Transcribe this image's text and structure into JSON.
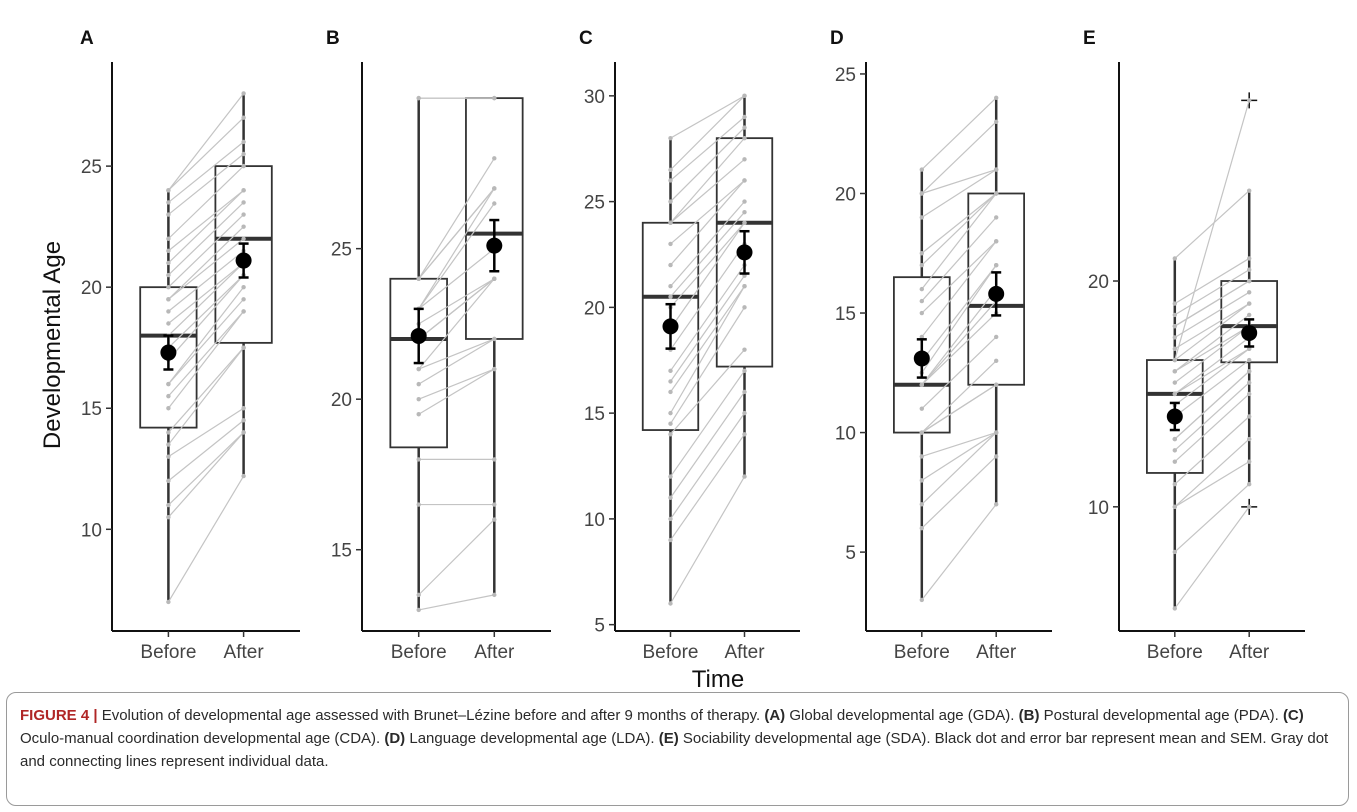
{
  "figure": {
    "y_axis_title": "Developmental Age",
    "x_axis_title": "Time",
    "caption": {
      "label": "FIGURE 4 |",
      "intro": " Evolution of developmental age assessed with Brunet–Lézine before and after 9 months of therapy. ",
      "parts": [
        {
          "tag": "(A)",
          "text": " Global developmental age (GDA). "
        },
        {
          "tag": "(B)",
          "text": " Postural developmental age (PDA). "
        },
        {
          "tag": "(C)",
          "text": " Oculo-manual coordination developmental age (CDA). "
        },
        {
          "tag": "(D)",
          "text": " Language developmental age (LDA). "
        },
        {
          "tag": "(E)",
          "text": " Sociability developmental age (SDA). "
        }
      ],
      "outro": "Black dot and error bar represent mean and SEM. Gray dot and connecting lines represent individual data."
    }
  },
  "chart_data": [
    {
      "type": "box",
      "panel": "A",
      "categories": [
        "Before",
        "After"
      ],
      "yticks": [
        10,
        15,
        20,
        25
      ],
      "ylim": [
        5.8,
        29.3
      ],
      "boxes": [
        {
          "category": "Before",
          "min": 7,
          "q1": 14.2,
          "median": 18,
          "q3": 20,
          "max": 24,
          "mean": 17.3,
          "sem": 0.7
        },
        {
          "category": "After",
          "min": 12.2,
          "q1": 17.7,
          "median": 22,
          "q3": 25,
          "max": 28,
          "mean": 21.1,
          "sem": 0.7
        }
      ],
      "individual": [
        [
          7,
          12.2
        ],
        [
          10.5,
          14
        ],
        [
          11,
          14
        ],
        [
          12,
          14.5
        ],
        [
          13,
          15
        ],
        [
          13.5,
          17.5
        ],
        [
          14,
          17.5
        ],
        [
          15,
          19
        ],
        [
          15.5,
          19
        ],
        [
          16,
          19.5
        ],
        [
          16,
          20
        ],
        [
          17,
          20.5
        ],
        [
          17.5,
          20.5
        ],
        [
          18,
          21
        ],
        [
          18.5,
          21
        ],
        [
          19,
          21.5
        ],
        [
          19.5,
          22
        ],
        [
          19.5,
          22.5
        ],
        [
          20,
          23
        ],
        [
          20.5,
          23.5
        ],
        [
          21,
          24
        ],
        [
          21.5,
          24
        ],
        [
          22,
          25
        ],
        [
          23,
          25.5
        ],
        [
          23.5,
          26
        ],
        [
          24,
          27
        ],
        [
          24,
          28
        ]
      ],
      "outliers": []
    },
    {
      "type": "box",
      "panel": "B",
      "categories": [
        "Before",
        "After"
      ],
      "yticks": [
        15,
        20,
        25
      ],
      "ylim": [
        12.3,
        31.2
      ],
      "boxes": [
        {
          "category": "Before",
          "min": 13,
          "q1": 18.4,
          "median": 22,
          "q3": 24,
          "max": 30,
          "mean": 22.1,
          "sem": 0.9
        },
        {
          "category": "After",
          "min": 13.5,
          "q1": 22,
          "median": 25.5,
          "q3": 30,
          "max": 30,
          "mean": 25.1,
          "sem": 0.85
        }
      ],
      "individual": [
        [
          13,
          13.5
        ],
        [
          13.5,
          16
        ],
        [
          16.5,
          16.5
        ],
        [
          18,
          18
        ],
        [
          19.5,
          21
        ],
        [
          20,
          21
        ],
        [
          20.5,
          22
        ],
        [
          21,
          22
        ],
        [
          21,
          24
        ],
        [
          22,
          24
        ],
        [
          22,
          24
        ],
        [
          22.5,
          24
        ],
        [
          23,
          25
        ],
        [
          23,
          26.5
        ],
        [
          23,
          27
        ],
        [
          24,
          27
        ],
        [
          24,
          27
        ],
        [
          24,
          28
        ],
        [
          30,
          30
        ],
        [
          30,
          30
        ]
      ],
      "outliers": []
    },
    {
      "type": "box",
      "panel": "C",
      "categories": [
        "Before",
        "After"
      ],
      "yticks": [
        5,
        10,
        15,
        20,
        25,
        30
      ],
      "ylim": [
        4.7,
        31.6
      ],
      "boxes": [
        {
          "category": "Before",
          "min": 6,
          "q1": 14.2,
          "median": 20.5,
          "q3": 24,
          "max": 28,
          "mean": 19.1,
          "sem": 1.05
        },
        {
          "category": "After",
          "min": 12,
          "q1": 17.2,
          "median": 24,
          "q3": 28,
          "max": 30,
          "mean": 22.6,
          "sem": 1.0
        }
      ],
      "individual": [
        [
          6,
          12
        ],
        [
          9,
          14
        ],
        [
          10,
          15
        ],
        [
          11,
          16
        ],
        [
          12,
          17
        ],
        [
          14,
          18
        ],
        [
          14.5,
          20
        ],
        [
          15,
          21
        ],
        [
          16,
          21
        ],
        [
          16.5,
          21.5
        ],
        [
          17,
          22
        ],
        [
          18,
          23
        ],
        [
          19,
          24
        ],
        [
          20,
          24
        ],
        [
          20.5,
          24.5
        ],
        [
          21,
          25
        ],
        [
          22,
          26
        ],
        [
          23,
          26
        ],
        [
          24,
          27
        ],
        [
          24,
          28
        ],
        [
          25,
          28.5
        ],
        [
          26,
          29
        ],
        [
          26.5,
          30
        ],
        [
          28,
          30
        ]
      ],
      "outliers": []
    },
    {
      "type": "box",
      "panel": "D",
      "categories": [
        "Before",
        "After"
      ],
      "yticks": [
        5,
        10,
        15,
        20,
        25
      ],
      "ylim": [
        1.7,
        25.5
      ],
      "boxes": [
        {
          "category": "Before",
          "min": 3,
          "q1": 10,
          "median": 12,
          "q3": 16.5,
          "max": 21,
          "mean": 13.1,
          "sem": 0.8
        },
        {
          "category": "After",
          "min": 7,
          "q1": 12,
          "median": 15.3,
          "q3": 20,
          "max": 24,
          "mean": 15.8,
          "sem": 0.9
        }
      ],
      "individual": [
        [
          3,
          7
        ],
        [
          6,
          9
        ],
        [
          7,
          10
        ],
        [
          8,
          10
        ],
        [
          9,
          10
        ],
        [
          10,
          12
        ],
        [
          10,
          12
        ],
        [
          10,
          13
        ],
        [
          11,
          14
        ],
        [
          12,
          15
        ],
        [
          12,
          15.5
        ],
        [
          12,
          16
        ],
        [
          12.5,
          17
        ],
        [
          13,
          17
        ],
        [
          14,
          18
        ],
        [
          15,
          18
        ],
        [
          15.5,
          19
        ],
        [
          16,
          20
        ],
        [
          17,
          20
        ],
        [
          17.5,
          20
        ],
        [
          19,
          21
        ],
        [
          20,
          21
        ],
        [
          20,
          23
        ],
        [
          21,
          24
        ]
      ],
      "outliers": []
    },
    {
      "type": "box",
      "panel": "E",
      "categories": [
        "Before",
        "After"
      ],
      "yticks": [
        10,
        20
      ],
      "ylim": [
        4.5,
        29.7
      ],
      "boxes": [
        {
          "category": "Before",
          "min": 5.5,
          "q1": 11.5,
          "median": 15,
          "q3": 16.5,
          "max": 21,
          "mean": 14,
          "sem": 0.6
        },
        {
          "category": "After",
          "min": 11,
          "q1": 16.4,
          "median": 18,
          "q3": 20,
          "max": 24,
          "mean": 17.7,
          "sem": 0.6
        }
      ],
      "individual": [
        [
          5.5,
          10
        ],
        [
          8,
          11
        ],
        [
          10,
          12
        ],
        [
          10,
          13
        ],
        [
          11,
          14
        ],
        [
          12,
          15
        ],
        [
          12.5,
          15.5
        ],
        [
          13,
          16
        ],
        [
          13,
          16
        ],
        [
          14,
          16.5
        ],
        [
          14.5,
          17
        ],
        [
          15,
          17
        ],
        [
          15,
          17.5
        ],
        [
          15.5,
          18
        ],
        [
          16,
          18
        ],
        [
          16,
          18.5
        ],
        [
          16.5,
          19
        ],
        [
          17,
          19
        ],
        [
          17.5,
          19.5
        ],
        [
          18,
          20
        ],
        [
          18,
          20
        ],
        [
          18.5,
          20.5
        ],
        [
          19,
          21
        ],
        [
          21,
          24
        ],
        [
          16.5,
          28
        ]
      ],
      "outliers": [
        {
          "category": "After",
          "value": 28
        },
        {
          "category": "After",
          "value": 10
        }
      ]
    }
  ]
}
